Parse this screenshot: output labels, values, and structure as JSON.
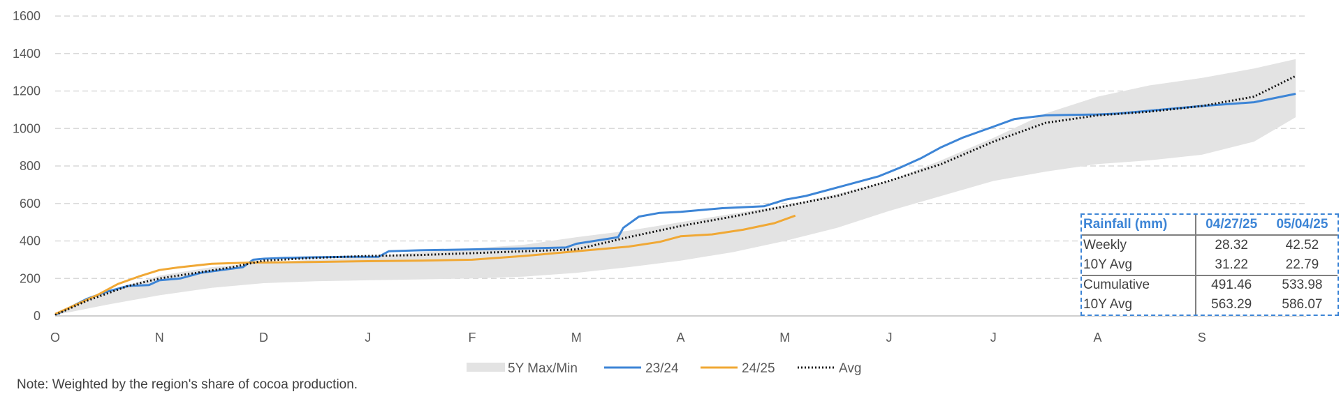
{
  "chart_data": {
    "type": "line",
    "title": "",
    "xlabel": "",
    "ylabel": "",
    "ylim": [
      0,
      1600
    ],
    "yticks": [
      0,
      200,
      400,
      600,
      800,
      1000,
      1200,
      1400,
      1600
    ],
    "grid": true,
    "legend_position": "bottom",
    "x_period": "October to September",
    "x_tick_labels": [
      "O",
      "N",
      "D",
      "J",
      "F",
      "M",
      "A",
      "M",
      "J",
      "J",
      "A",
      "S"
    ],
    "band": {
      "name": "5Y Max/Min",
      "color": "#e3e3e3",
      "x": [
        0,
        0.5,
        1,
        1.5,
        2,
        2.5,
        3,
        3.5,
        4,
        4.5,
        5,
        5.5,
        6,
        6.5,
        7,
        7.5,
        8,
        8.5,
        9,
        9.5,
        10,
        10.5,
        11,
        11.5,
        11.9
      ],
      "upper": [
        10,
        130,
        215,
        260,
        285,
        300,
        315,
        340,
        360,
        380,
        420,
        455,
        500,
        545,
        590,
        650,
        720,
        830,
        950,
        1080,
        1170,
        1230,
        1270,
        1320,
        1370
      ],
      "lower": [
        5,
        60,
        110,
        150,
        175,
        185,
        190,
        195,
        200,
        210,
        230,
        260,
        295,
        340,
        400,
        470,
        560,
        640,
        720,
        770,
        810,
        830,
        860,
        930,
        1060
      ]
    },
    "series": [
      {
        "name": "23/24",
        "color": "#3d85d6",
        "x": [
          0,
          0.3,
          0.5,
          0.7,
          0.9,
          1,
          1.2,
          1.4,
          1.6,
          1.8,
          1.9,
          2,
          2.2,
          2.5,
          2.8,
          3.1,
          3.2,
          3.5,
          4,
          4.5,
          4.9,
          5,
          5.4,
          5.45,
          5.6,
          5.8,
          6,
          6.4,
          6.8,
          7,
          7.2,
          7.6,
          7.9,
          8.1,
          8.3,
          8.5,
          8.7,
          9,
          9.2,
          9.5,
          10,
          10.2,
          10.5,
          11,
          11.5,
          11.9
        ],
        "y": [
          5,
          90,
          130,
          160,
          165,
          190,
          200,
          230,
          245,
          260,
          300,
          305,
          310,
          313,
          315,
          315,
          345,
          350,
          355,
          360,
          365,
          385,
          420,
          470,
          530,
          550,
          555,
          575,
          585,
          620,
          640,
          700,
          745,
          790,
          840,
          900,
          950,
          1010,
          1050,
          1070,
          1075,
          1080,
          1095,
          1120,
          1140,
          1185
        ]
      },
      {
        "name": "24/25",
        "color": "#f0a835",
        "x": [
          0,
          0.2,
          0.4,
          0.6,
          0.8,
          1,
          1.2,
          1.5,
          1.9,
          2,
          2.5,
          3,
          3.5,
          4,
          4.5,
          5,
          5.5,
          5.8,
          6,
          6.3,
          6.6,
          6.9,
          7.1
        ],
        "y": [
          10,
          60,
          110,
          170,
          210,
          245,
          260,
          278,
          285,
          285,
          288,
          292,
          295,
          300,
          320,
          345,
          370,
          395,
          425,
          435,
          460,
          495,
          535
        ]
      },
      {
        "name": "Avg",
        "color": "#111111",
        "x": [
          0,
          0.3,
          0.5,
          0.7,
          1,
          1.3,
          1.7,
          2,
          2.5,
          3,
          3.5,
          4,
          4.5,
          5,
          5.5,
          6,
          6.5,
          7,
          7.5,
          8,
          8.5,
          9,
          9.5,
          10,
          10.5,
          11,
          11.5,
          11.9
        ],
        "y": [
          5,
          80,
          120,
          160,
          200,
          225,
          260,
          295,
          310,
          320,
          325,
          335,
          345,
          355,
          420,
          480,
          530,
          585,
          640,
          720,
          810,
          930,
          1030,
          1070,
          1090,
          1120,
          1170,
          1280
        ]
      }
    ]
  },
  "legend": {
    "band_label": "5Y Max/Min",
    "s1_label": "23/24",
    "s2_label": "24/25",
    "avg_label": "Avg"
  },
  "table": {
    "header": [
      "Rainfall (mm)",
      "04/27/25",
      "05/04/25"
    ],
    "rows": [
      [
        "Weekly",
        "28.32",
        "42.52"
      ],
      [
        "10Y Avg",
        "31.22",
        "22.79"
      ],
      [
        "Cumulative",
        "491.46",
        "533.98"
      ],
      [
        "10Y Avg",
        "563.29",
        "586.07"
      ]
    ]
  },
  "note": "Note: Weighted by the region's share of cocoa production."
}
